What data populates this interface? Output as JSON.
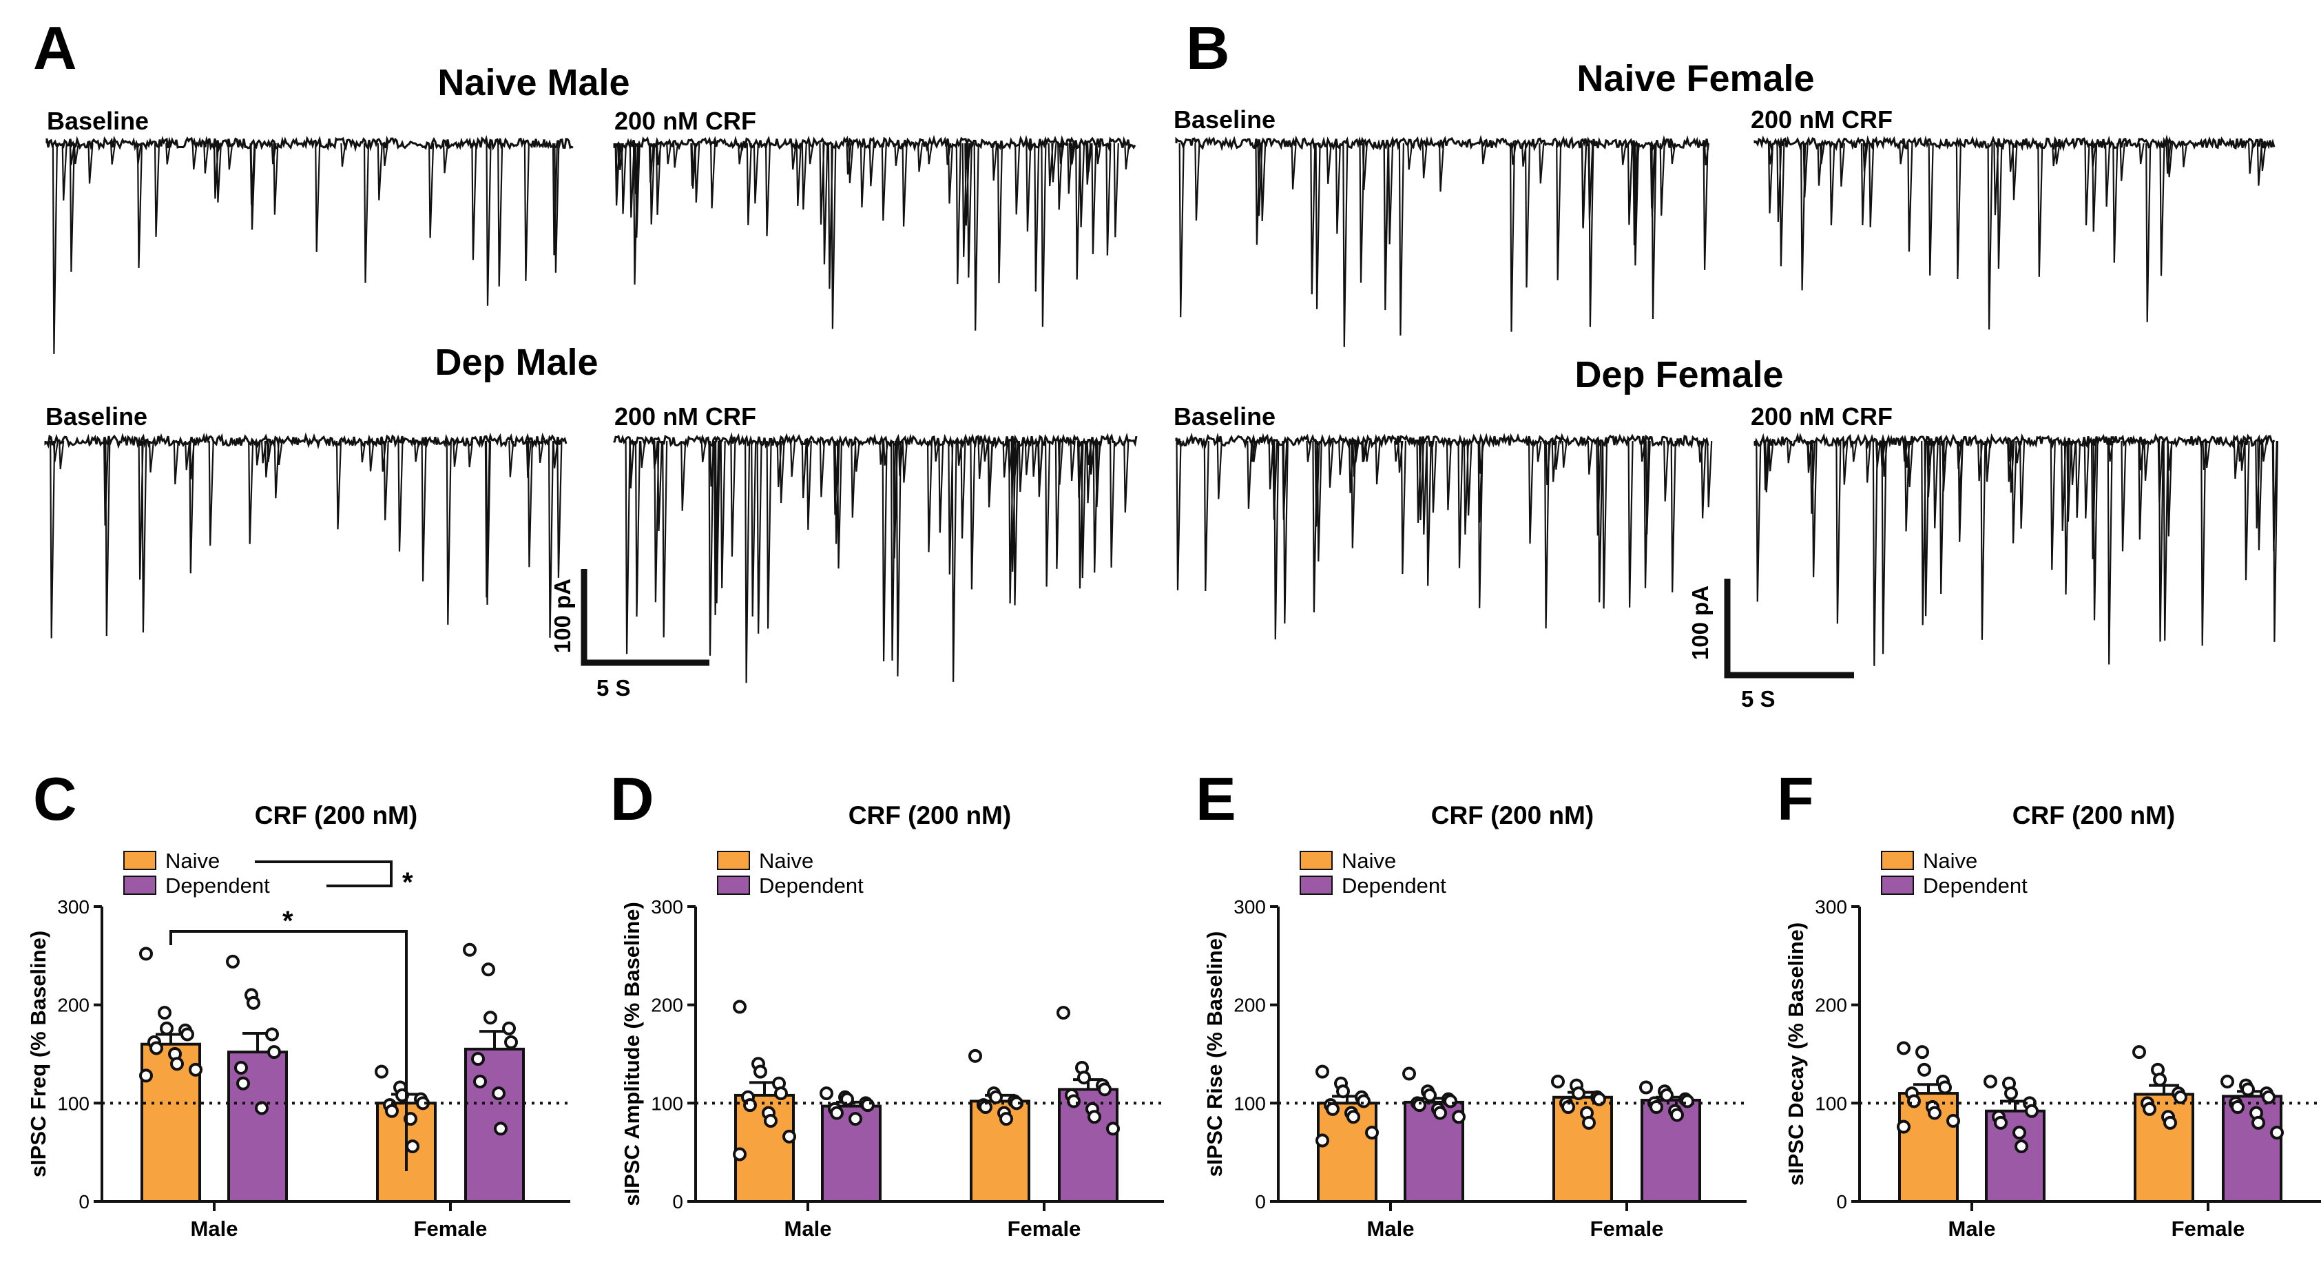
{
  "figure": {
    "panel_letters": [
      "A",
      "B",
      "C",
      "D",
      "E",
      "F"
    ],
    "colors": {
      "naive": "#F7A340",
      "dependent": "#9B59A6",
      "trace": "#111111"
    }
  },
  "traces": {
    "A": {
      "title_top": "Naive Male",
      "title_bottom": "Dep Male"
    },
    "B": {
      "title_top": "Naive Female",
      "title_bottom": "Dep Female"
    },
    "baseline_label": "Baseline",
    "crf_label": "200 nM CRF",
    "scale_y_label": "100 pA",
    "scale_x_label": "5 S"
  },
  "chart_data": [
    {
      "panel": "C",
      "type": "bar",
      "title": "CRF (200 nM)",
      "ylabel": "sIPSC Freq (% Baseline)",
      "xlabel": "",
      "categories": [
        "Male",
        "Female"
      ],
      "ylim": [
        0,
        300
      ],
      "yticks": [
        0,
        100,
        200,
        300
      ],
      "reference_line": 100,
      "legend": [
        "Naive",
        "Dependent"
      ],
      "series": [
        {
          "name": "Naive",
          "values": [
            160,
            100
          ],
          "sem": [
            10,
            9
          ],
          "points": [
            [
              252,
              192,
              176,
              174,
              170,
              162,
              156,
              150,
              140,
              134,
              128
            ],
            [
              132,
              116,
              108,
              104,
              100,
              98,
              92,
              84,
              56
            ]
          ]
        },
        {
          "name": "Dependent",
          "values": [
            152,
            155
          ],
          "sem": [
            19,
            18
          ],
          "points": [
            [
              244,
              210,
              202,
              170,
              152,
              136,
              120,
              95
            ],
            [
              256,
              236,
              187,
              176,
              162,
              145,
              122,
              110,
              74
            ]
          ]
        }
      ],
      "significance": [
        "*",
        "*"
      ]
    },
    {
      "panel": "D",
      "type": "bar",
      "title": "CRF (200 nM)",
      "ylabel": "sIPSC Amplitude (% Baseline)",
      "xlabel": "",
      "categories": [
        "Male",
        "Female"
      ],
      "ylim": [
        0,
        300
      ],
      "yticks": [
        0,
        100,
        200,
        300
      ],
      "reference_line": 100,
      "legend": [
        "Naive",
        "Dependent"
      ],
      "series": [
        {
          "name": "Naive",
          "values": [
            108,
            102
          ],
          "sem": [
            13,
            6
          ],
          "points": [
            [
              198,
              140,
              132,
              120,
              110,
              106,
              98,
              90,
              82,
              66,
              48
            ],
            [
              148,
              110,
              106,
              102,
              100,
              98,
              96,
              90,
              84
            ]
          ]
        },
        {
          "name": "Dependent",
          "values": [
            97,
            114
          ],
          "sem": [
            4,
            10
          ],
          "points": [
            [
              110,
              106,
              104,
              100,
              98,
              94,
              90,
              84
            ],
            [
              192,
              136,
              126,
              118,
              114,
              108,
              102,
              94,
              86,
              74
            ]
          ]
        }
      ]
    },
    {
      "panel": "E",
      "type": "bar",
      "title": "CRF (200 nM)",
      "ylabel": "sIPSC Rise (% Baseline)",
      "xlabel": "",
      "categories": [
        "Male",
        "Female"
      ],
      "ylim": [
        0,
        300
      ],
      "yticks": [
        0,
        100,
        200,
        300
      ],
      "reference_line": 100,
      "legend": [
        "Naive",
        "Dependent"
      ],
      "series": [
        {
          "name": "Naive",
          "values": [
            100,
            106
          ],
          "sem": [
            7,
            5
          ],
          "points": [
            [
              132,
              120,
              112,
              106,
              102,
              98,
              94,
              90,
              86,
              70,
              62
            ],
            [
              122,
              118,
              110,
              106,
              104,
              100,
              96,
              90,
              80
            ]
          ]
        },
        {
          "name": "Dependent",
          "values": [
            101,
            103
          ],
          "sem": [
            4,
            3
          ],
          "points": [
            [
              130,
              112,
              108,
              104,
              102,
              100,
              98,
              94,
              90,
              86
            ],
            [
              116,
              112,
              108,
              104,
              102,
              100,
              96,
              92,
              88
            ]
          ]
        }
      ]
    },
    {
      "panel": "F",
      "type": "bar",
      "title": "CRF (200 nM)",
      "ylabel": "sIPSC Decay (% Baseline)",
      "xlabel": "",
      "categories": [
        "Male",
        "Female"
      ],
      "ylim": [
        0,
        300
      ],
      "yticks": [
        0,
        100,
        200,
        300
      ],
      "reference_line": 100,
      "legend": [
        "Naive",
        "Dependent"
      ],
      "series": [
        {
          "name": "Naive",
          "values": [
            110,
            109
          ],
          "sem": [
            9,
            9
          ],
          "points": [
            [
              156,
              152,
              134,
              122,
              116,
              110,
              102,
              96,
              90,
              82,
              76
            ],
            [
              152,
              134,
              124,
              110,
              106,
              100,
              94,
              86,
              80
            ]
          ]
        },
        {
          "name": "Dependent",
          "values": [
            92,
            107
          ],
          "sem": [
            10,
            5
          ],
          "points": [
            [
              122,
              120,
              110,
              100,
              92,
              86,
              80,
              70,
              56
            ],
            [
              122,
              118,
              114,
              110,
              106,
              100,
              96,
              90,
              80,
              70
            ]
          ]
        }
      ]
    }
  ]
}
